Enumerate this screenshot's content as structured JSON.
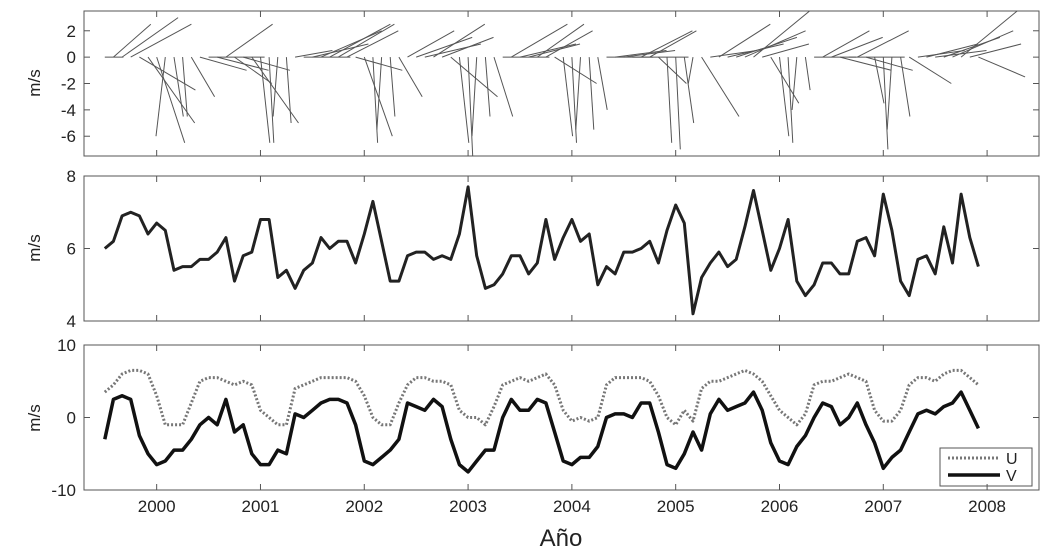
{
  "chart_data": {
    "type": "line",
    "shared_x": {
      "label": "Año",
      "range": [
        1999.3,
        2008.5
      ],
      "ticks": [
        2000,
        2001,
        2002,
        2003,
        2004,
        2005,
        2006,
        2007,
        2008
      ],
      "tick_labels": [
        "2000",
        "2001",
        "2002",
        "2003",
        "2004",
        "2005",
        "2006",
        "2007",
        "2008"
      ]
    },
    "panels": [
      {
        "id": "vectors",
        "chart_type": "vector-stick",
        "ylabel": "m/s",
        "ylim": [
          -7.5,
          3.5
        ],
        "yticks": [
          2,
          0,
          -2,
          -4,
          -6
        ],
        "ytick_labels": [
          "2",
          "0",
          "-2",
          "-4",
          "-6"
        ],
        "stick_color": "#555555"
      },
      {
        "id": "speed",
        "chart_type": "line",
        "ylabel": "m/s",
        "ylim": [
          4,
          8
        ],
        "yticks": [
          8,
          6,
          4
        ],
        "ytick_labels": [
          "8",
          "6",
          "4"
        ],
        "series_color": "#222222"
      },
      {
        "id": "components",
        "chart_type": "line",
        "ylabel": "m/s",
        "ylim": [
          -10,
          10
        ],
        "yticks": [
          10,
          0,
          -10
        ],
        "ytick_labels": [
          "10",
          "0",
          "-10"
        ],
        "legend": {
          "position": "bottom-right",
          "entries": [
            "U",
            "V"
          ]
        },
        "u_color": "#777777",
        "v_color": "#111111"
      }
    ],
    "speed_values": [
      6.0,
      6.2,
      6.9,
      7.0,
      6.9,
      6.4,
      6.7,
      6.5,
      5.4,
      5.5,
      5.5,
      5.7,
      5.7,
      5.9,
      6.3,
      5.1,
      5.8,
      5.9,
      6.8,
      6.8,
      5.2,
      5.4,
      4.9,
      5.4,
      5.6,
      6.3,
      6.0,
      6.2,
      6.2,
      5.6,
      6.4,
      7.3,
      6.2,
      5.1,
      5.1,
      5.8,
      5.9,
      5.9,
      5.7,
      5.8,
      5.7,
      6.4,
      7.7,
      5.8,
      4.9,
      5.0,
      5.3,
      5.8,
      5.8,
      5.3,
      5.6,
      6.8,
      5.7,
      6.3,
      6.8,
      6.2,
      6.4,
      5.0,
      5.5,
      5.3,
      5.9,
      5.9,
      6.0,
      6.2,
      5.6,
      6.5,
      7.2,
      6.7,
      4.2,
      5.2,
      5.6,
      5.9,
      5.5,
      5.7,
      6.6,
      7.6,
      6.5,
      5.4,
      6.0,
      6.8,
      5.1,
      4.7,
      5.0,
      5.6,
      5.6,
      5.3,
      5.3,
      6.2,
      6.3,
      5.8,
      7.5,
      6.5,
      5.1,
      4.7,
      5.7,
      5.8,
      5.3,
      6.6,
      5.6,
      7.5,
      6.3,
      5.5
    ],
    "u_values": [
      3.5,
      4.5,
      6.0,
      6.5,
      6.5,
      6.0,
      3.0,
      -1.0,
      -1.0,
      -1.0,
      2.0,
      5.0,
      5.5,
      5.5,
      5.0,
      4.5,
      5.0,
      4.5,
      1.0,
      0.0,
      -1.0,
      -1.0,
      4.0,
      4.5,
      5.0,
      5.5,
      5.5,
      5.5,
      5.5,
      5.0,
      3.0,
      0.0,
      -1.0,
      -1.0,
      2.0,
      4.5,
      5.5,
      5.5,
      5.0,
      5.0,
      4.5,
      1.0,
      0.0,
      0.0,
      -1.0,
      1.5,
      4.5,
      5.0,
      5.5,
      5.0,
      5.5,
      6.0,
      4.5,
      1.0,
      -0.5,
      0.0,
      -0.5,
      0.0,
      4.5,
      5.5,
      5.5,
      5.5,
      5.5,
      5.0,
      3.0,
      0.0,
      -1.0,
      1.0,
      -0.5,
      4.0,
      5.0,
      5.0,
      5.5,
      6.0,
      6.5,
      6.0,
      5.0,
      3.0,
      1.0,
      0.0,
      -1.0,
      0.5,
      4.5,
      5.0,
      5.0,
      5.5,
      6.0,
      5.5,
      5.0,
      1.0,
      -0.5,
      -0.5,
      1.0,
      4.5,
      5.5,
      5.5,
      5.0,
      6.0,
      6.5,
      6.5,
      5.5,
      4.5
    ],
    "v_values": [
      -3.0,
      2.5,
      3.0,
      2.5,
      -2.5,
      -5.0,
      -6.5,
      -6.0,
      -4.5,
      -4.5,
      -3.0,
      -1.0,
      0.0,
      -1.0,
      2.5,
      -2.0,
      -1.0,
      -5.0,
      -6.5,
      -6.5,
      -4.5,
      -5.0,
      0.5,
      0.0,
      1.0,
      2.0,
      2.5,
      2.5,
      2.0,
      -1.0,
      -6.0,
      -6.5,
      -5.5,
      -4.5,
      -3.0,
      2.0,
      1.5,
      1.0,
      2.5,
      1.5,
      -3.0,
      -6.5,
      -7.5,
      -6.0,
      -4.5,
      -4.5,
      0.0,
      2.5,
      1.0,
      1.0,
      2.5,
      2.0,
      -2.0,
      -6.0,
      -6.5,
      -5.5,
      -5.5,
      -4.0,
      0.0,
      0.5,
      0.5,
      0.0,
      2.0,
      2.0,
      -2.0,
      -6.5,
      -7.0,
      -5.0,
      -2.0,
      -4.5,
      0.5,
      2.5,
      1.0,
      1.5,
      2.0,
      3.5,
      1.0,
      -3.5,
      -6.0,
      -6.5,
      -4.0,
      -2.5,
      0.0,
      2.0,
      1.5,
      -1.0,
      0.0,
      2.0,
      -1.0,
      -3.5,
      -7.0,
      -5.5,
      -4.5,
      -2.0,
      0.5,
      1.0,
      0.5,
      1.5,
      2.0,
      3.5,
      1.0,
      -1.5
    ],
    "vector_start": 1999.5,
    "vector_step": 0.08333,
    "vector_u": [
      2.0,
      4.0,
      6.0,
      6.5,
      6.0,
      5.0,
      3.0,
      -1.0,
      1.0,
      0.5,
      2.5,
      5.0,
      6.0,
      5.5,
      5.0,
      4.0,
      5.0,
      5.0,
      1.0,
      0.5,
      -0.5,
      0.5,
      4.0,
      5.0,
      6.0,
      6.5,
      6.5,
      6.0,
      5.5,
      5.0,
      3.0,
      0.5,
      -0.5,
      0.5,
      2.5,
      5.0,
      6.0,
      6.0,
      5.5,
      5.5,
      5.0,
      1.0,
      0.5,
      -0.5,
      0.5,
      2.0,
      5.0,
      6.0,
      6.0,
      5.5,
      5.0,
      5.0,
      4.5,
      1.0,
      0.5,
      -0.5,
      0.5,
      1.0,
      5.0,
      5.5,
      5.5,
      6.0,
      5.5,
      5.0,
      3.0,
      0.5,
      0.5,
      1.0,
      -0.5,
      4.0,
      5.0,
      5.5,
      6.0,
      6.5,
      6.5,
      6.0,
      5.0,
      3.0,
      1.0,
      0.5,
      -0.5,
      0.5,
      4.5,
      5.0,
      5.5,
      5.5,
      6.0,
      5.5,
      5.0,
      1.0,
      0.5,
      -0.5,
      1.0,
      4.5,
      5.0,
      5.5,
      5.5,
      6.0,
      6.5,
      6.0,
      5.5,
      5.0
    ],
    "vector_v": [
      0.0,
      2.5,
      3.0,
      2.5,
      -2.5,
      -5.0,
      -6.5,
      -6.0,
      -4.5,
      -4.5,
      -3.0,
      -1.0,
      0.0,
      -1.0,
      2.5,
      -2.0,
      -1.0,
      -5.0,
      -6.5,
      -6.5,
      -4.5,
      -5.0,
      0.5,
      0.0,
      1.0,
      2.0,
      2.5,
      2.5,
      2.0,
      -1.0,
      -6.0,
      -6.5,
      -5.5,
      -4.5,
      -3.0,
      2.0,
      1.5,
      1.0,
      2.5,
      1.5,
      -3.0,
      -6.5,
      -7.5,
      -6.0,
      -4.5,
      -4.5,
      0.0,
      2.5,
      1.0,
      1.0,
      2.5,
      2.0,
      -2.0,
      -6.0,
      -6.5,
      -5.5,
      -5.5,
      -4.0,
      0.0,
      0.5,
      0.5,
      0.0,
      2.0,
      2.0,
      -2.0,
      -6.5,
      -7.0,
      -5.0,
      -2.0,
      -4.5,
      0.5,
      2.5,
      1.0,
      1.5,
      2.0,
      3.5,
      1.0,
      -3.5,
      -6.0,
      -6.5,
      -4.0,
      -2.5,
      0.0,
      2.0,
      1.5,
      -1.0,
      0.0,
      2.0,
      -1.0,
      -3.5,
      -7.0,
      -5.5,
      -4.5,
      -2.0,
      0.5,
      1.0,
      0.5,
      1.5,
      2.0,
      3.5,
      1.0,
      -1.5
    ]
  }
}
